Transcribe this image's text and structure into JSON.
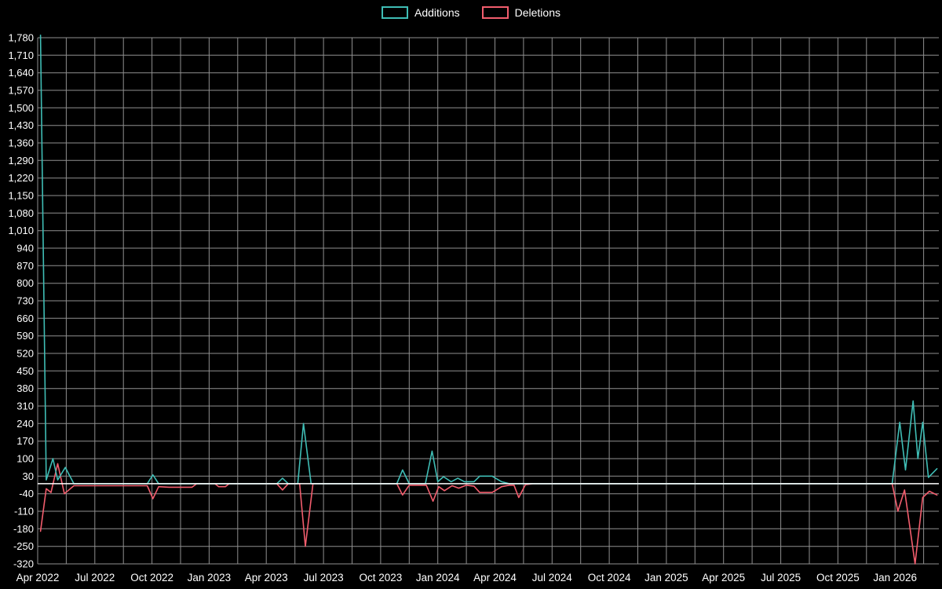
{
  "page": {
    "background": "#000000"
  },
  "chart_data": {
    "type": "line",
    "title": "",
    "legend_position": "top-center",
    "grid": true,
    "style": {
      "background": "#000000",
      "text_color": "#ffffff",
      "grid_color": "#8f8f8f",
      "zero_line_color": "#ffffff"
    },
    "x_axis": {
      "unit": "months since Apr 2022",
      "range": [
        0,
        47.3
      ],
      "grid_step": 1.5,
      "tick_positions": [
        0,
        3,
        6,
        9,
        12,
        15,
        18,
        21,
        24,
        27,
        30,
        33,
        36,
        39,
        42,
        45
      ],
      "tick_labels": [
        "Apr 2022",
        "Jul 2022",
        "Oct 2022",
        "Jan 2023",
        "Apr 2023",
        "Jul 2023",
        "Oct 2023",
        "Jan 2024",
        "Apr 2024",
        "Jul 2024",
        "Oct 2024",
        "Jan 2025",
        "Apr 2025",
        "Jul 2025",
        "Oct 2025",
        "Jan 2026"
      ]
    },
    "y_axis": {
      "min": -320,
      "max": 1780,
      "step": 70,
      "tick_values": [
        -320,
        -250,
        -180,
        -110,
        -40,
        30,
        100,
        170,
        240,
        310,
        380,
        450,
        520,
        590,
        660,
        730,
        800,
        870,
        940,
        1010,
        1080,
        1150,
        1220,
        1290,
        1360,
        1430,
        1500,
        1570,
        1640,
        1710,
        1780
      ],
      "tick_labels": [
        "-320",
        "-250",
        "-180",
        "-110",
        "-40",
        "30",
        "100",
        "170",
        "240",
        "310",
        "380",
        "450",
        "520",
        "590",
        "660",
        "730",
        "800",
        "870",
        "940",
        "1,010",
        "1,080",
        "1,150",
        "1,220",
        "1,290",
        "1,360",
        "1,430",
        "1,500",
        "1,570",
        "1,640",
        "1,710",
        "1,780"
      ]
    },
    "series": [
      {
        "name": "Additions",
        "color": "#3fbdb5",
        "points": [
          [
            0.15,
            1790
          ],
          [
            0.45,
            15
          ],
          [
            0.8,
            100
          ],
          [
            1.05,
            15
          ],
          [
            1.45,
            65
          ],
          [
            1.9,
            0
          ],
          [
            5.75,
            0
          ],
          [
            6.05,
            35
          ],
          [
            6.35,
            0
          ],
          [
            12.55,
            0
          ],
          [
            12.85,
            22
          ],
          [
            13.15,
            0
          ],
          [
            13.65,
            0
          ],
          [
            13.95,
            240
          ],
          [
            14.35,
            0
          ],
          [
            18.85,
            0
          ],
          [
            19.15,
            55
          ],
          [
            19.5,
            0
          ],
          [
            20.35,
            0
          ],
          [
            20.7,
            130
          ],
          [
            21.0,
            8
          ],
          [
            21.3,
            28
          ],
          [
            21.7,
            8
          ],
          [
            22.05,
            22
          ],
          [
            22.4,
            8
          ],
          [
            22.9,
            8
          ],
          [
            23.2,
            30
          ],
          [
            23.85,
            30
          ],
          [
            24.35,
            8
          ],
          [
            24.75,
            0
          ],
          [
            44.85,
            0
          ],
          [
            45.25,
            245
          ],
          [
            45.55,
            55
          ],
          [
            45.95,
            330
          ],
          [
            46.2,
            100
          ],
          [
            46.45,
            245
          ],
          [
            46.75,
            25
          ],
          [
            47.2,
            60
          ]
        ]
      },
      {
        "name": "Deletions",
        "color": "#f25d6d",
        "points": [
          [
            0.15,
            -190
          ],
          [
            0.45,
            -20
          ],
          [
            0.7,
            -35
          ],
          [
            1.05,
            80
          ],
          [
            1.4,
            -40
          ],
          [
            1.9,
            -8
          ],
          [
            5.75,
            -8
          ],
          [
            6.05,
            -60
          ],
          [
            6.35,
            -12
          ],
          [
            6.9,
            -14
          ],
          [
            8.1,
            -14
          ],
          [
            8.35,
            0
          ],
          [
            9.3,
            0
          ],
          [
            9.5,
            -12
          ],
          [
            9.85,
            -12
          ],
          [
            10.05,
            0
          ],
          [
            12.55,
            0
          ],
          [
            12.85,
            -25
          ],
          [
            13.15,
            0
          ],
          [
            13.75,
            0
          ],
          [
            14.05,
            -250
          ],
          [
            14.45,
            0
          ],
          [
            18.85,
            0
          ],
          [
            19.15,
            -45
          ],
          [
            19.5,
            -6
          ],
          [
            20.4,
            -6
          ],
          [
            20.75,
            -70
          ],
          [
            21.05,
            -12
          ],
          [
            21.35,
            -28
          ],
          [
            21.75,
            -8
          ],
          [
            22.1,
            -18
          ],
          [
            22.5,
            -6
          ],
          [
            22.9,
            -10
          ],
          [
            23.2,
            -35
          ],
          [
            23.85,
            -35
          ],
          [
            24.35,
            -12
          ],
          [
            24.75,
            -6
          ],
          [
            25.0,
            -6
          ],
          [
            25.25,
            -55
          ],
          [
            25.6,
            -4
          ],
          [
            26.0,
            0
          ],
          [
            44.85,
            0
          ],
          [
            45.15,
            -110
          ],
          [
            45.5,
            -25
          ],
          [
            46.05,
            -320
          ],
          [
            46.45,
            -55
          ],
          [
            46.8,
            -30
          ],
          [
            47.2,
            -45
          ]
        ]
      }
    ]
  }
}
